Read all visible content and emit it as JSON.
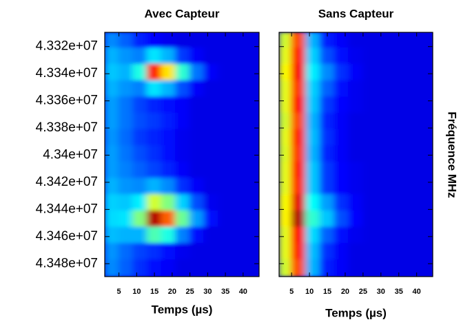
{
  "chart_data": [
    {
      "type": "heatmap",
      "title": "Avec Capteur",
      "xlabel": "Temps (µs)",
      "colormap": "jet",
      "xlim": [
        1,
        44.5
      ],
      "xticks": [
        5,
        10,
        15,
        20,
        25,
        30,
        35,
        40
      ],
      "ylim": [
        43489500,
        43309500
      ],
      "yticks": [
        {
          "value": 43320000,
          "label": "4.332e+07"
        },
        {
          "value": 43340000,
          "label": "4.334e+07"
        },
        {
          "value": 43360000,
          "label": "4.336e+07"
        },
        {
          "value": 43380000,
          "label": "4.338e+07"
        },
        {
          "value": 43400000,
          "label": "4.34e+07"
        },
        {
          "value": 43420000,
          "label": "4.342e+07"
        },
        {
          "value": 43440000,
          "label": "4.344e+07"
        },
        {
          "value": 43460000,
          "label": "4.346e+07"
        },
        {
          "value": 43480000,
          "label": "4.348e+07"
        }
      ],
      "x": [
        3,
        7,
        11,
        15,
        19,
        23,
        27,
        31,
        35,
        39,
        43
      ],
      "y": [
        43315000,
        43327000,
        43339000,
        43351000,
        43363000,
        43375000,
        43387000,
        43399000,
        43411000,
        43423000,
        43435000,
        43447000,
        43459000,
        43471000,
        43483000
      ],
      "z": [
        [
          0.26,
          0.22,
          0.16,
          0.13,
          0.11,
          0.1,
          0.1,
          0.1,
          0.1,
          0.1,
          0.1
        ],
        [
          0.3,
          0.27,
          0.25,
          0.35,
          0.3,
          0.18,
          0.12,
          0.1,
          0.1,
          0.1,
          0.1
        ],
        [
          0.32,
          0.3,
          0.4,
          0.85,
          0.65,
          0.42,
          0.24,
          0.12,
          0.1,
          0.1,
          0.1
        ],
        [
          0.3,
          0.27,
          0.25,
          0.35,
          0.3,
          0.2,
          0.12,
          0.1,
          0.1,
          0.1,
          0.1
        ],
        [
          0.28,
          0.24,
          0.19,
          0.16,
          0.14,
          0.12,
          0.1,
          0.1,
          0.1,
          0.1,
          0.1
        ],
        [
          0.28,
          0.24,
          0.2,
          0.18,
          0.15,
          0.12,
          0.1,
          0.1,
          0.1,
          0.1,
          0.1
        ],
        [
          0.27,
          0.23,
          0.18,
          0.16,
          0.14,
          0.11,
          0.1,
          0.1,
          0.1,
          0.1,
          0.1
        ],
        [
          0.28,
          0.24,
          0.2,
          0.17,
          0.14,
          0.11,
          0.1,
          0.1,
          0.1,
          0.1,
          0.1
        ],
        [
          0.28,
          0.25,
          0.22,
          0.19,
          0.16,
          0.12,
          0.1,
          0.1,
          0.1,
          0.1,
          0.1
        ],
        [
          0.3,
          0.27,
          0.26,
          0.3,
          0.26,
          0.17,
          0.12,
          0.1,
          0.1,
          0.1,
          0.1
        ],
        [
          0.33,
          0.32,
          0.36,
          0.58,
          0.5,
          0.33,
          0.2,
          0.11,
          0.1,
          0.1,
          0.1
        ],
        [
          0.34,
          0.35,
          0.5,
          0.95,
          0.78,
          0.48,
          0.28,
          0.14,
          0.1,
          0.1,
          0.1
        ],
        [
          0.31,
          0.3,
          0.3,
          0.45,
          0.4,
          0.25,
          0.14,
          0.1,
          0.1,
          0.1,
          0.1
        ],
        [
          0.27,
          0.23,
          0.19,
          0.17,
          0.14,
          0.11,
          0.1,
          0.1,
          0.1,
          0.1,
          0.1
        ],
        [
          0.26,
          0.22,
          0.17,
          0.14,
          0.12,
          0.1,
          0.1,
          0.1,
          0.1,
          0.1,
          0.1
        ]
      ]
    },
    {
      "type": "heatmap",
      "title": "Sans Capteur",
      "xlabel": "Temps (µs)",
      "ylabel": "Fréquence MHz",
      "colormap": "jet",
      "xlim": [
        1.5,
        44.5
      ],
      "xticks": [
        5,
        10,
        15,
        20,
        25,
        30,
        35,
        40
      ],
      "ylim": [
        43489500,
        43309500
      ],
      "x": [
        3,
        7,
        11,
        15,
        19,
        23,
        27,
        31,
        35,
        39,
        43
      ],
      "y": [
        43315000,
        43327000,
        43339000,
        43351000,
        43363000,
        43375000,
        43387000,
        43399000,
        43411000,
        43423000,
        43435000,
        43447000,
        43459000,
        43471000,
        43483000
      ],
      "z": [
        [
          0.58,
          0.8,
          0.3,
          0.15,
          0.12,
          0.1,
          0.1,
          0.1,
          0.1,
          0.1,
          0.1
        ],
        [
          0.6,
          0.84,
          0.33,
          0.2,
          0.14,
          0.11,
          0.1,
          0.1,
          0.1,
          0.1,
          0.1
        ],
        [
          0.62,
          0.88,
          0.36,
          0.26,
          0.17,
          0.12,
          0.1,
          0.1,
          0.1,
          0.1,
          0.1
        ],
        [
          0.6,
          0.82,
          0.33,
          0.22,
          0.14,
          0.11,
          0.1,
          0.1,
          0.1,
          0.1,
          0.1
        ],
        [
          0.6,
          0.86,
          0.32,
          0.18,
          0.13,
          0.11,
          0.1,
          0.1,
          0.1,
          0.1,
          0.1
        ],
        [
          0.58,
          0.8,
          0.3,
          0.16,
          0.12,
          0.1,
          0.1,
          0.1,
          0.1,
          0.1,
          0.1
        ],
        [
          0.6,
          0.84,
          0.31,
          0.17,
          0.12,
          0.1,
          0.1,
          0.1,
          0.1,
          0.1,
          0.1
        ],
        [
          0.59,
          0.82,
          0.3,
          0.16,
          0.12,
          0.1,
          0.1,
          0.1,
          0.1,
          0.1,
          0.1
        ],
        [
          0.6,
          0.85,
          0.32,
          0.18,
          0.13,
          0.11,
          0.1,
          0.1,
          0.1,
          0.1,
          0.1
        ],
        [
          0.6,
          0.83,
          0.32,
          0.18,
          0.13,
          0.11,
          0.1,
          0.1,
          0.1,
          0.1,
          0.1
        ],
        [
          0.62,
          0.9,
          0.38,
          0.28,
          0.17,
          0.12,
          0.1,
          0.1,
          0.1,
          0.1,
          0.1
        ],
        [
          0.63,
          0.95,
          0.42,
          0.32,
          0.2,
          0.13,
          0.1,
          0.1,
          0.1,
          0.1,
          0.1
        ],
        [
          0.6,
          0.86,
          0.34,
          0.22,
          0.14,
          0.11,
          0.1,
          0.1,
          0.1,
          0.1,
          0.1
        ],
        [
          0.6,
          0.84,
          0.31,
          0.17,
          0.12,
          0.1,
          0.1,
          0.1,
          0.1,
          0.1,
          0.1
        ],
        [
          0.58,
          0.8,
          0.3,
          0.15,
          0.12,
          0.1,
          0.1,
          0.1,
          0.1,
          0.1,
          0.1
        ]
      ]
    }
  ]
}
